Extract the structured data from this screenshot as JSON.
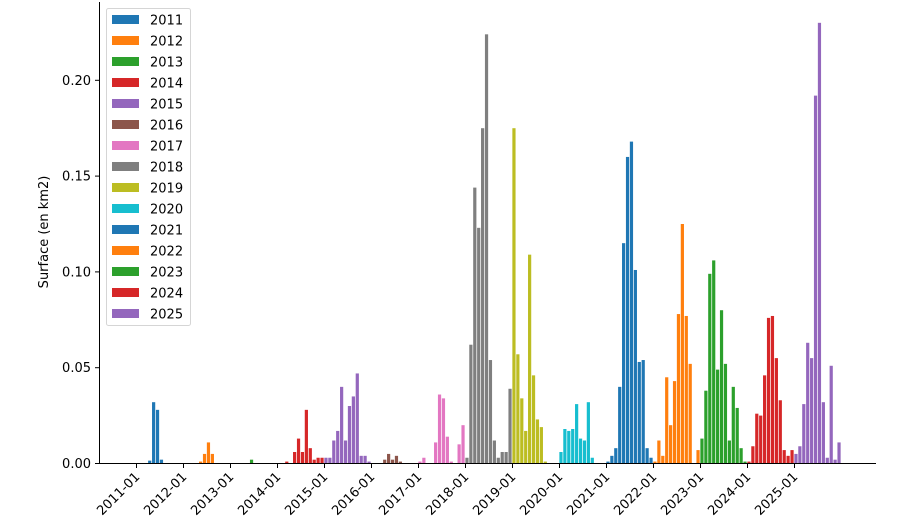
{
  "chart_data": {
    "type": "bar",
    "title": "",
    "xlabel": "",
    "ylabel": "Surface (en km2)",
    "ylim": [
      0,
      0.24
    ],
    "yticks": [
      "0.00",
      "0.05",
      "0.10",
      "0.15",
      "0.20"
    ],
    "ytick_values": [
      0,
      0.05,
      0.1,
      0.15,
      0.2
    ],
    "xticks": [
      "2011-01",
      "2012-01",
      "2013-01",
      "2014-01",
      "2015-01",
      "2016-01",
      "2017-01",
      "2018-01",
      "2019-01",
      "2020-01",
      "2021-01",
      "2022-01",
      "2023-01",
      "2024-01",
      "2025-01"
    ],
    "grid": false,
    "legend_position": "upper left",
    "series": [
      {
        "name": "2011",
        "color": "#1f77b4",
        "points": [
          [
            "2011-04",
            0.0015
          ],
          [
            "2011-05",
            0.032
          ],
          [
            "2011-06",
            0.028
          ],
          [
            "2011-07",
            0.002
          ]
        ]
      },
      {
        "name": "2012",
        "color": "#ff7f0e",
        "points": [
          [
            "2012-05",
            0.001
          ],
          [
            "2012-06",
            0.005
          ],
          [
            "2012-07",
            0.011
          ],
          [
            "2012-08",
            0.005
          ]
        ]
      },
      {
        "name": "2013",
        "color": "#2ca02c",
        "points": [
          [
            "2013-06",
            0.002
          ]
        ]
      },
      {
        "name": "2014",
        "color": "#d62728",
        "points": [
          [
            "2014-03",
            0.001
          ],
          [
            "2014-05",
            0.006
          ],
          [
            "2014-06",
            0.013
          ],
          [
            "2014-07",
            0.006
          ],
          [
            "2014-08",
            0.028
          ],
          [
            "2014-09",
            0.008
          ],
          [
            "2014-10",
            0.002
          ],
          [
            "2014-11",
            0.003
          ],
          [
            "2014-12",
            0.003
          ]
        ]
      },
      {
        "name": "2015",
        "color": "#9467bd",
        "points": [
          [
            "2015-01",
            0.003
          ],
          [
            "2015-02",
            0.003
          ],
          [
            "2015-03",
            0.012
          ],
          [
            "2015-04",
            0.017
          ],
          [
            "2015-05",
            0.04
          ],
          [
            "2015-06",
            0.012
          ],
          [
            "2015-07",
            0.03
          ],
          [
            "2015-08",
            0.035
          ],
          [
            "2015-09",
            0.047
          ],
          [
            "2015-10",
            0.004
          ],
          [
            "2015-11",
            0.004
          ],
          [
            "2015-12",
            0.001
          ]
        ]
      },
      {
        "name": "2016",
        "color": "#8c564b",
        "points": [
          [
            "2016-04",
            0.002
          ],
          [
            "2016-05",
            0.005
          ],
          [
            "2016-06",
            0.002
          ],
          [
            "2016-07",
            0.004
          ],
          [
            "2016-08",
            0.001
          ]
        ]
      },
      {
        "name": "2017",
        "color": "#e377c2",
        "points": [
          [
            "2017-01",
            0.001
          ],
          [
            "2017-02",
            0.003
          ],
          [
            "2017-05",
            0.011
          ],
          [
            "2017-06",
            0.036
          ],
          [
            "2017-07",
            0.034
          ],
          [
            "2017-08",
            0.014
          ],
          [
            "2017-09",
            0.001
          ],
          [
            "2017-11",
            0.01
          ],
          [
            "2017-12",
            0.02
          ]
        ]
      },
      {
        "name": "2018",
        "color": "#7f7f7f",
        "points": [
          [
            "2018-01",
            0.003
          ],
          [
            "2018-02",
            0.062
          ],
          [
            "2018-03",
            0.144
          ],
          [
            "2018-04",
            0.123
          ],
          [
            "2018-05",
            0.175
          ],
          [
            "2018-06",
            0.224
          ],
          [
            "2018-07",
            0.054
          ],
          [
            "2018-08",
            0.012
          ],
          [
            "2018-09",
            0.003
          ],
          [
            "2018-10",
            0.006
          ],
          [
            "2018-11",
            0.006
          ],
          [
            "2018-12",
            0.039
          ]
        ]
      },
      {
        "name": "2019",
        "color": "#bcbd22",
        "points": [
          [
            "2019-01",
            0.175
          ],
          [
            "2019-02",
            0.057
          ],
          [
            "2019-03",
            0.034
          ],
          [
            "2019-04",
            0.017
          ],
          [
            "2019-05",
            0.109
          ],
          [
            "2019-06",
            0.046
          ],
          [
            "2019-07",
            0.023
          ],
          [
            "2019-08",
            0.019
          ],
          [
            "2019-09",
            0.001
          ]
        ]
      },
      {
        "name": "2020",
        "color": "#17becf",
        "points": [
          [
            "2020-01",
            0.006
          ],
          [
            "2020-02",
            0.018
          ],
          [
            "2020-03",
            0.017
          ],
          [
            "2020-04",
            0.018
          ],
          [
            "2020-05",
            0.031
          ],
          [
            "2020-06",
            0.013
          ],
          [
            "2020-07",
            0.012
          ],
          [
            "2020-08",
            0.032
          ],
          [
            "2020-09",
            0.003
          ]
        ]
      },
      {
        "name": "2021",
        "color": "#1f77b4",
        "points": [
          [
            "2021-01",
            0.001
          ],
          [
            "2021-02",
            0.004
          ],
          [
            "2021-03",
            0.008
          ],
          [
            "2021-04",
            0.04
          ],
          [
            "2021-05",
            0.115
          ],
          [
            "2021-06",
            0.16
          ],
          [
            "2021-07",
            0.168
          ],
          [
            "2021-08",
            0.101
          ],
          [
            "2021-09",
            0.053
          ],
          [
            "2021-10",
            0.054
          ],
          [
            "2021-11",
            0.008
          ],
          [
            "2021-12",
            0.003
          ]
        ]
      },
      {
        "name": "2022",
        "color": "#ff7f0e",
        "points": [
          [
            "2022-01",
            0.001
          ],
          [
            "2022-02",
            0.012
          ],
          [
            "2022-03",
            0.004
          ],
          [
            "2022-04",
            0.045
          ],
          [
            "2022-05",
            0.02
          ],
          [
            "2022-06",
            0.043
          ],
          [
            "2022-07",
            0.078
          ],
          [
            "2022-08",
            0.125
          ],
          [
            "2022-09",
            0.077
          ],
          [
            "2022-10",
            0.052
          ],
          [
            "2022-12",
            0.007
          ]
        ]
      },
      {
        "name": "2023",
        "color": "#2ca02c",
        "points": [
          [
            "2023-01",
            0.013
          ],
          [
            "2023-02",
            0.038
          ],
          [
            "2023-03",
            0.099
          ],
          [
            "2023-04",
            0.106
          ],
          [
            "2023-05",
            0.049
          ],
          [
            "2023-06",
            0.08
          ],
          [
            "2023-07",
            0.052
          ],
          [
            "2023-08",
            0.012
          ],
          [
            "2023-09",
            0.04
          ],
          [
            "2023-10",
            0.029
          ],
          [
            "2023-11",
            0.008
          ],
          [
            "2023-12",
            0.001
          ]
        ]
      },
      {
        "name": "2024",
        "color": "#d62728",
        "points": [
          [
            "2024-01",
            0.001
          ],
          [
            "2024-02",
            0.009
          ],
          [
            "2024-03",
            0.026
          ],
          [
            "2024-04",
            0.025
          ],
          [
            "2024-05",
            0.046
          ],
          [
            "2024-06",
            0.076
          ],
          [
            "2024-07",
            0.077
          ],
          [
            "2024-08",
            0.055
          ],
          [
            "2024-09",
            0.033
          ],
          [
            "2024-10",
            0.007
          ],
          [
            "2024-11",
            0.004
          ],
          [
            "2024-12",
            0.007
          ]
        ]
      },
      {
        "name": "2025",
        "color": "#9467bd",
        "points": [
          [
            "2025-01",
            0.005
          ],
          [
            "2025-02",
            0.009
          ],
          [
            "2025-03",
            0.031
          ],
          [
            "2025-04",
            0.063
          ],
          [
            "2025-05",
            0.055
          ],
          [
            "2025-06",
            0.192
          ],
          [
            "2025-07",
            0.23
          ],
          [
            "2025-08",
            0.032
          ],
          [
            "2025-09",
            0.003
          ],
          [
            "2025-10",
            0.051
          ],
          [
            "2025-11",
            0.002
          ],
          [
            "2025-12",
            0.011
          ]
        ]
      }
    ]
  }
}
